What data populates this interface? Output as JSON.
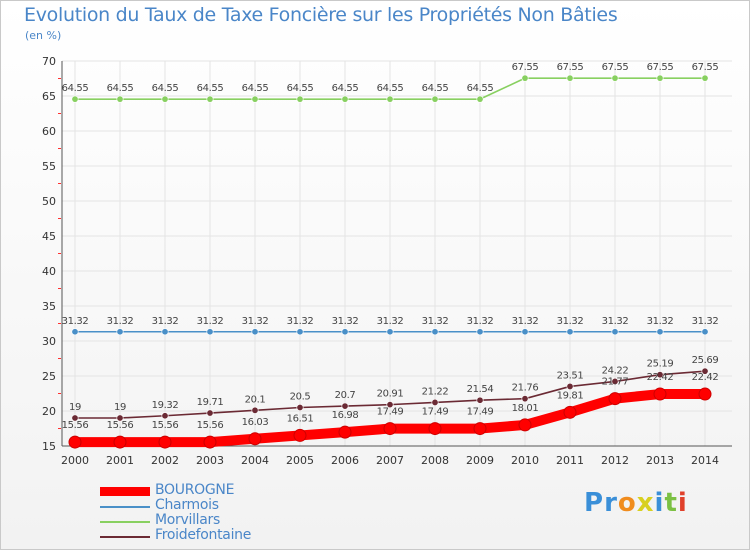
{
  "title": "Evolution du Taux de Taxe Foncière sur les Propriétés Non Bâties",
  "subtitle": "(en %)",
  "logo": {
    "letters": [
      "P",
      "r",
      "o",
      "x",
      "i",
      "t",
      "i"
    ],
    "colors": [
      "#3a8fd8",
      "#3a8fd8",
      "#f08c1e",
      "#d8d020",
      "#3a8fd8",
      "#7bc043",
      "#e0402a"
    ]
  },
  "chart_data": {
    "type": "line",
    "title": "Evolution du Taux de Taxe Foncière sur les Propriétés Non Bâties",
    "ylabel": "(en %)",
    "ylim": [
      15,
      70
    ],
    "yticks": [
      15,
      20,
      25,
      30,
      35,
      40,
      45,
      50,
      55,
      60,
      65,
      70
    ],
    "x": [
      "2000",
      "2001",
      "2002",
      "2003",
      "2004",
      "2005",
      "2006",
      "2007",
      "2008",
      "2009",
      "2010",
      "2011",
      "2012",
      "2013",
      "2014"
    ],
    "series": [
      {
        "name": "BOUROGNE",
        "color": "#ff0000",
        "values": [
          15.56,
          15.56,
          15.56,
          15.56,
          16.03,
          16.51,
          16.98,
          17.49,
          17.49,
          17.49,
          18.01,
          19.81,
          21.77,
          22.42,
          22.42
        ],
        "labels": [
          "15.56",
          "15.56",
          "15.56",
          "15.56",
          "16.03",
          "16.51",
          "16.98",
          "17.49",
          "17.49",
          "17.49",
          "18.01",
          "19.81",
          "21.77",
          "22.42",
          "22.42"
        ]
      },
      {
        "name": "Charmois",
        "color": "#4a90c8",
        "values": [
          31.32,
          31.32,
          31.32,
          31.32,
          31.32,
          31.32,
          31.32,
          31.32,
          31.32,
          31.32,
          31.32,
          31.32,
          31.32,
          31.32,
          31.32
        ],
        "labels": [
          "31.32",
          "31.32",
          "31.32",
          "31.32",
          "31.32",
          "31.32",
          "31.32",
          "31.32",
          "31.32",
          "31.32",
          "31.32",
          "31.32",
          "31.32",
          "31.32",
          "31.32"
        ]
      },
      {
        "name": "Morvillars",
        "color": "#88d060",
        "values": [
          64.55,
          64.55,
          64.55,
          64.55,
          64.55,
          64.55,
          64.55,
          64.55,
          64.55,
          64.55,
          67.55,
          67.55,
          67.55,
          67.55,
          67.55
        ],
        "labels": [
          "64.55",
          "64.55",
          "64.55",
          "64.55",
          "64.55",
          "64.55",
          "64.55",
          "64.55",
          "64.55",
          "64.55",
          "67.55",
          "67.55",
          "67.55",
          "67.55",
          "67.55"
        ]
      },
      {
        "name": "Froidefontaine",
        "color": "#6b2a34",
        "values": [
          19,
          19,
          19.32,
          19.71,
          20.1,
          20.5,
          20.7,
          20.91,
          21.22,
          21.54,
          21.76,
          23.51,
          24.22,
          25.19,
          25.69
        ],
        "labels": [
          "19",
          "19",
          "19.32",
          "19.71",
          "20.1",
          "20.5",
          "20.7",
          "20.91",
          "21.22",
          "21.54",
          "21.76",
          "23.51",
          "24.22",
          "25.19",
          "25.69"
        ]
      }
    ]
  }
}
